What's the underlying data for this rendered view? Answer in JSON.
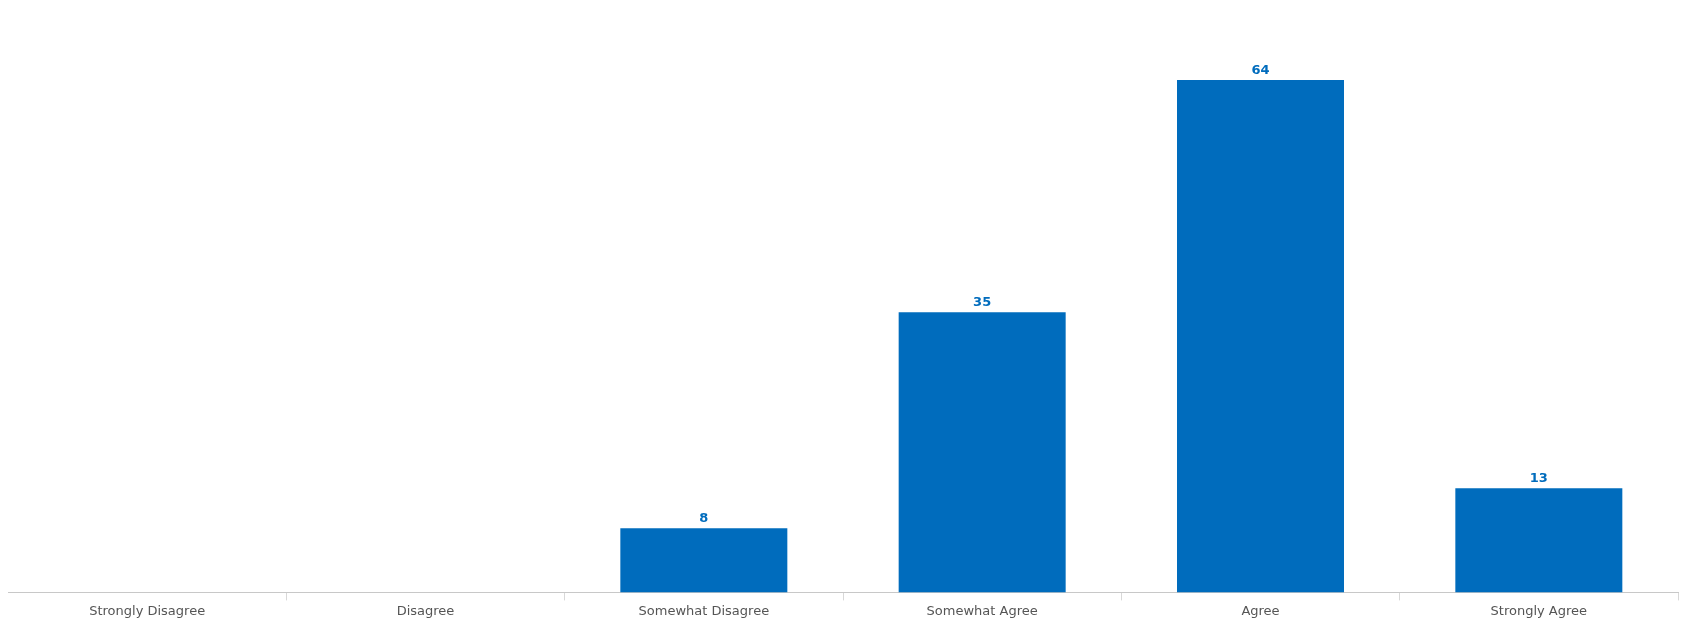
{
  "chart_data": {
    "type": "bar",
    "categories": [
      "Strongly Disagree",
      "Disagree",
      "Somewhat Disagree",
      "Somewhat Agree",
      "Agree",
      "Strongly Agree"
    ],
    "values": [
      0,
      0,
      8,
      35,
      64,
      13
    ],
    "value_labels": [
      null,
      null,
      "8",
      "35",
      "64",
      "13"
    ],
    "color": "#006cbd"
  }
}
